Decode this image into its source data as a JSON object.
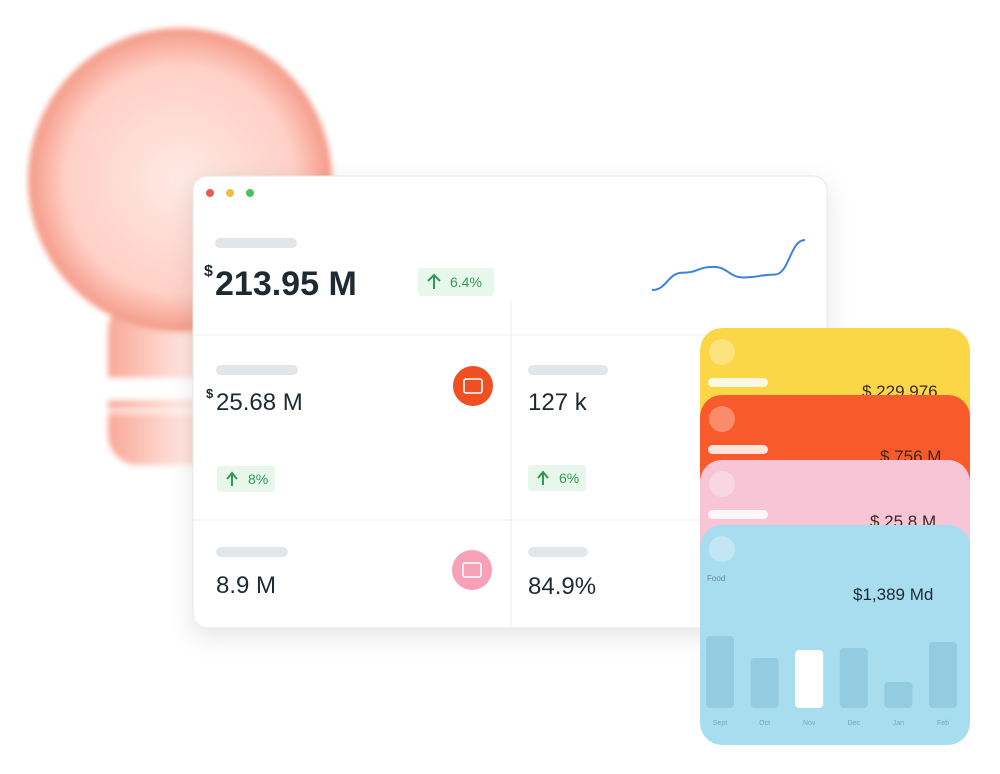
{
  "window": {
    "headline": {
      "currency": "$",
      "amount": "213.95 M",
      "change": "6.4%",
      "trend": [
        20,
        38,
        44,
        33,
        36,
        72
      ]
    },
    "metrics": [
      {
        "currency": "$",
        "amount": "25.68 M",
        "change": "8%"
      },
      {
        "amount": "127 k",
        "change": "6%"
      },
      {
        "amount": "8.9 M"
      },
      {
        "amount": "84.9%"
      }
    ]
  },
  "cards": [
    {
      "amount": "$ 229,976",
      "color": "#fbd646"
    },
    {
      "amount": "$ 756 M",
      "color": "#f85a2c"
    },
    {
      "amount": "$ 25.8 M",
      "color": "#f7c5d6"
    },
    {
      "label": "Food",
      "amount": "$1,389 Md",
      "color": "#a8dcef",
      "bars": {
        "categories": [
          "Sept",
          "Oct",
          "Nov",
          "Dec",
          "Jan",
          "Feb"
        ],
        "values": [
          72,
          50,
          58,
          60,
          26,
          66
        ],
        "colors": [
          "#93cbe0",
          "#93cbe0",
          "#ffffff",
          "#93cbe0",
          "#93cbe0",
          "#93cbe0"
        ]
      }
    }
  ]
}
